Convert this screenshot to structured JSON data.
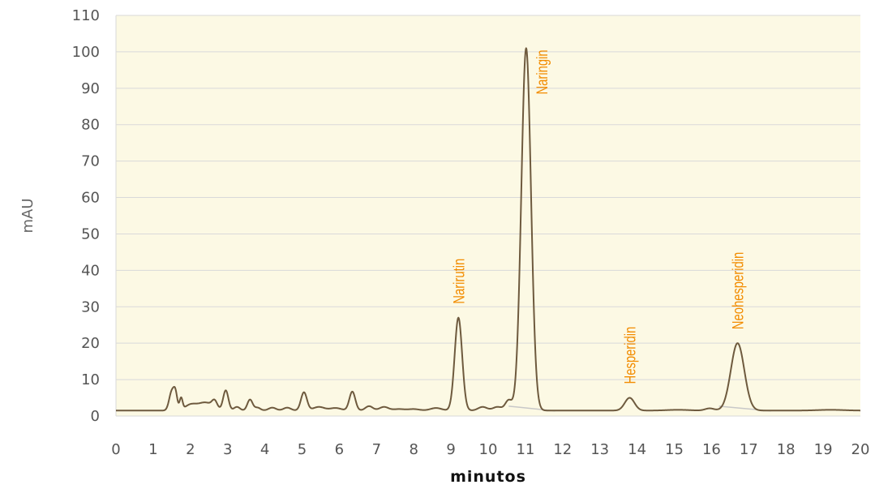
{
  "chart_data": {
    "type": "line",
    "title": "",
    "xlabel": "minutos",
    "ylabel": "mAU",
    "xlim": [
      0,
      20
    ],
    "ylim": [
      0,
      110
    ],
    "xticks": [
      "0",
      "1",
      "2",
      "3",
      "4",
      "5",
      "6",
      "7",
      "8",
      "9",
      "10",
      "11",
      "12",
      "13",
      "14",
      "15",
      "16",
      "17",
      "18",
      "19",
      "20"
    ],
    "yticks": [
      "0",
      "10",
      "20",
      "30",
      "40",
      "50",
      "60",
      "70",
      "80",
      "90",
      "100",
      "110"
    ],
    "grid": "horizontal",
    "colors": {
      "plot_background": "#fcf9e4",
      "grid": "#d9d9d9",
      "trace": "#6e5a3e",
      "baseline": "#c8c8c8",
      "label": "#f28c00"
    },
    "series": [
      {
        "baseline": 1.5,
        "peaks": [
          {
            "x": 1.5,
            "height": 5.2,
            "width": 0.07
          },
          {
            "x": 1.6,
            "height": 4.0,
            "width": 0.05
          },
          {
            "x": 1.75,
            "height": 3.2,
            "width": 0.04
          },
          {
            "x": 2.0,
            "height": 1.5,
            "width": 0.15
          },
          {
            "x": 2.4,
            "height": 2.2,
            "width": 0.2
          },
          {
            "x": 2.65,
            "height": 2.0,
            "width": 0.07
          },
          {
            "x": 2.95,
            "height": 5.5,
            "width": 0.07
          },
          {
            "x": 3.25,
            "height": 1.0,
            "width": 0.08
          },
          {
            "x": 3.6,
            "height": 3.0,
            "width": 0.07
          },
          {
            "x": 3.8,
            "height": 0.8,
            "width": 0.08
          },
          {
            "x": 4.2,
            "height": 0.8,
            "width": 0.1
          },
          {
            "x": 4.6,
            "height": 0.8,
            "width": 0.1
          },
          {
            "x": 5.05,
            "height": 5.0,
            "width": 0.08
          },
          {
            "x": 5.45,
            "height": 1.0,
            "width": 0.15
          },
          {
            "x": 5.9,
            "height": 0.7,
            "width": 0.15
          },
          {
            "x": 6.35,
            "height": 5.2,
            "width": 0.08
          },
          {
            "x": 6.8,
            "height": 1.2,
            "width": 0.1
          },
          {
            "x": 7.2,
            "height": 1.0,
            "width": 0.12
          },
          {
            "x": 7.6,
            "height": 0.4,
            "width": 0.15
          },
          {
            "x": 8.0,
            "height": 0.4,
            "width": 0.15
          },
          {
            "x": 8.6,
            "height": 0.7,
            "width": 0.15
          },
          {
            "x": 9.2,
            "height": 25.5,
            "width": 0.1
          },
          {
            "x": 9.85,
            "height": 1.0,
            "width": 0.12
          },
          {
            "x": 10.25,
            "height": 1.0,
            "width": 0.12
          },
          {
            "x": 10.55,
            "height": 2.8,
            "width": 0.09
          },
          {
            "x": 11.02,
            "height": 99.5,
            "width": 0.13
          },
          {
            "x": 13.8,
            "height": 3.5,
            "width": 0.13
          },
          {
            "x": 15.1,
            "height": 0.2,
            "width": 0.3
          },
          {
            "x": 15.95,
            "height": 0.6,
            "width": 0.12
          },
          {
            "x": 16.7,
            "height": 18.5,
            "width": 0.18
          },
          {
            "x": 19.2,
            "height": 0.2,
            "width": 0.35
          }
        ]
      }
    ],
    "annotations": [
      {
        "text": "Narirutin",
        "x": 9.2
      },
      {
        "text": "Naringin",
        "x": 11.02
      },
      {
        "text": "Hesperidin",
        "x": 13.8
      },
      {
        "text": "Neohesperidin",
        "x": 16.7
      }
    ]
  }
}
